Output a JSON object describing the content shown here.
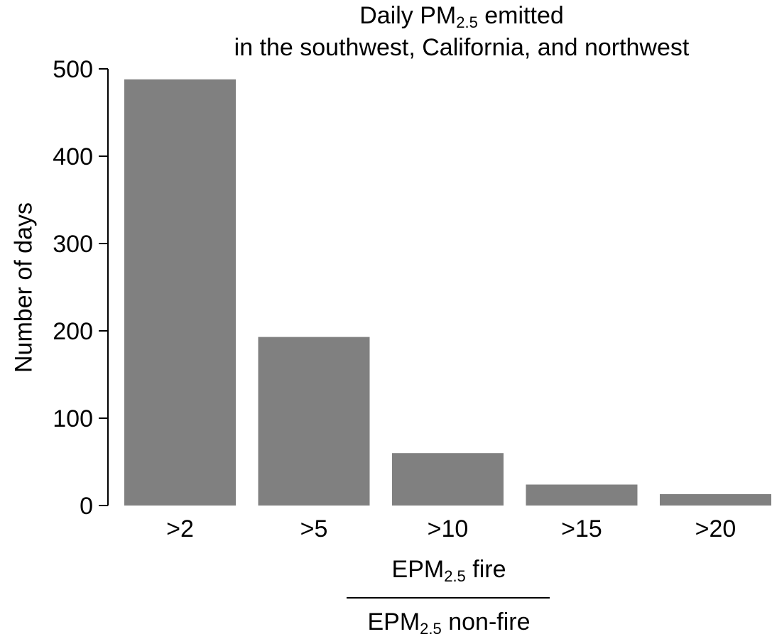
{
  "chart_data": {
    "type": "bar",
    "title": {
      "line1_prefix": "Daily PM",
      "line1_sub": "2.5",
      "line1_suffix": " emitted",
      "line2": "in the southwest, California, and northwest"
    },
    "ylabel": "Number of days",
    "xlabel": {
      "numerator_prefix": "EPM",
      "numerator_sub": "2.5",
      "numerator_suffix": " fire",
      "denominator_prefix": "EPM",
      "denominator_sub": "2.5",
      "denominator_suffix": " non-fire"
    },
    "categories": [
      ">2",
      ">5",
      ">10",
      ">15",
      ">20"
    ],
    "values": [
      488,
      193,
      60,
      24,
      13
    ],
    "ylim": [
      0,
      500
    ],
    "yticks": [
      0,
      100,
      200,
      300,
      400,
      500
    ],
    "bar_color": "#808080",
    "grid": false,
    "legend": "none"
  }
}
